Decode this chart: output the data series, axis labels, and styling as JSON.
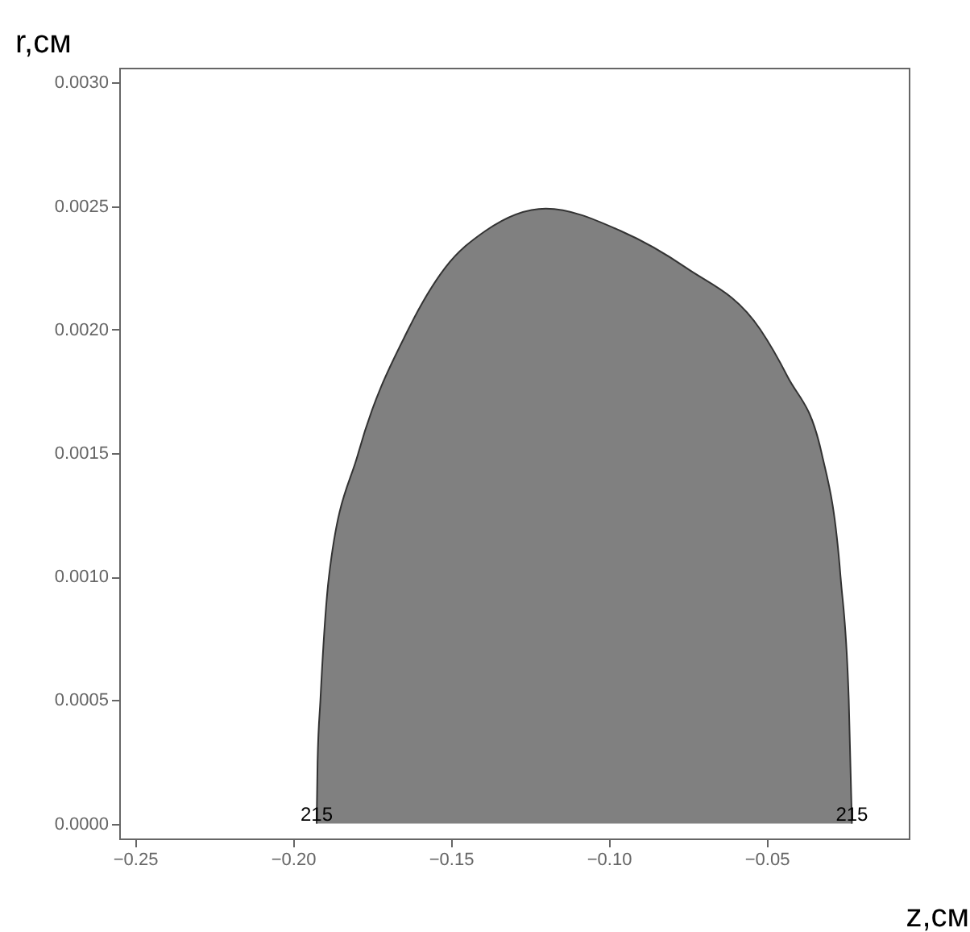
{
  "chart_data": {
    "type": "area",
    "xlabel": "z,см",
    "ylabel": "r,см",
    "x": [
      -0.1925,
      -0.1922,
      -0.1913,
      -0.1886,
      -0.1793,
      -0.1635,
      -0.1518,
      -0.139,
      -0.1199,
      -0.0963,
      -0.0755,
      -0.052,
      -0.0434,
      -0.0326,
      -0.0266,
      -0.024,
      -0.023
    ],
    "series": [
      {
        "color": "#808080",
        "values": [
          0,
          0.00025,
          0.0005,
          0.001,
          0.0015,
          0.002,
          0.00225,
          0.0024,
          0.00249,
          0.0024,
          0.00225,
          0.002,
          0.00181,
          0.0015,
          0.001,
          0.0005,
          0
        ]
      }
    ],
    "xlim": [
      -0.255,
      -0.005
    ],
    "ylim": [
      -6e-05,
      0.00306
    ],
    "xticks": [
      {
        "value": -0.25,
        "label": "−0.25"
      },
      {
        "value": -0.2,
        "label": "−0.20"
      },
      {
        "value": -0.15,
        "label": "−0.15"
      },
      {
        "value": -0.1,
        "label": "−0.10"
      },
      {
        "value": -0.05,
        "label": "−0.05"
      }
    ],
    "yticks": [
      {
        "value": 0,
        "label": "0.0000"
      },
      {
        "value": 0.0005,
        "label": "0.0005"
      },
      {
        "value": 0.001,
        "label": "0.0010"
      },
      {
        "value": 0.0015,
        "label": "0.0015"
      },
      {
        "value": 0.002,
        "label": "0.0020"
      },
      {
        "value": 0.0025,
        "label": "0.0025"
      },
      {
        "value": 0.003,
        "label": "0.0030"
      }
    ],
    "annotations": [
      {
        "text": "215",
        "x": -0.1925,
        "y": 0
      },
      {
        "text": "215",
        "x": -0.023,
        "y": 0
      }
    ],
    "grid": false
  }
}
